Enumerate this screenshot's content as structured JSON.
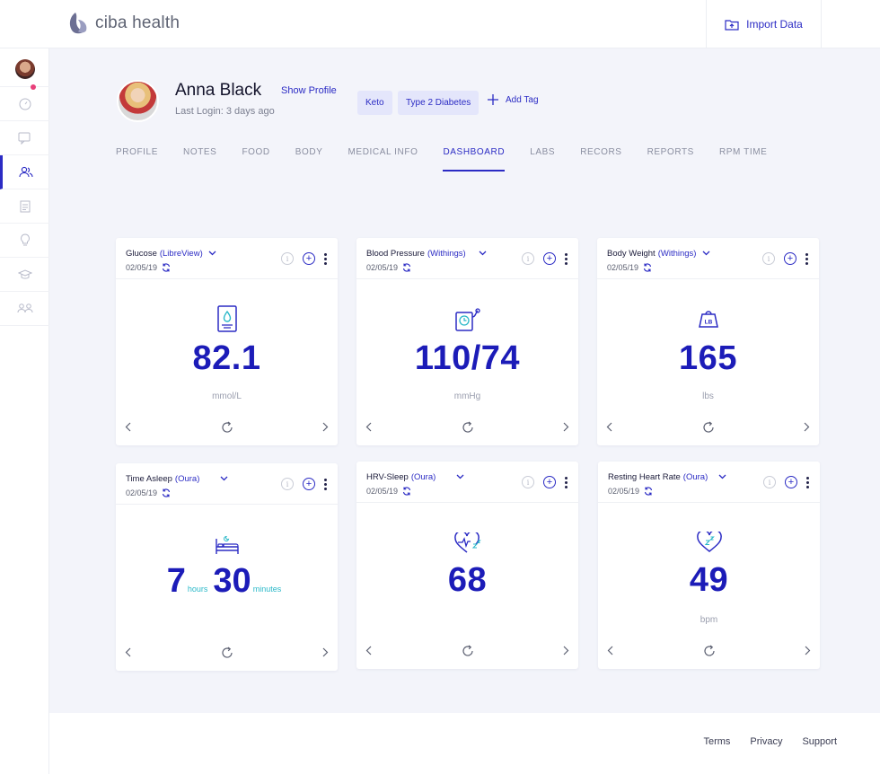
{
  "app": {
    "brand": "ciba health",
    "import_label": "Import Data"
  },
  "patient": {
    "name": "Anna Black",
    "show_profile": "Show Profile",
    "last_login": "Last Login: 3 days ago",
    "tags": [
      "Keto",
      "Type 2 Diabetes"
    ],
    "add_tag": "Add Tag"
  },
  "tabs": [
    "PROFILE",
    "NOTES",
    "FOOD",
    "BODY",
    "MEDICAL INFO",
    "DASHBOARD",
    "LABS",
    "RECORS",
    "REPORTS",
    "RPM TIME"
  ],
  "active_tab": "DASHBOARD",
  "cards": [
    {
      "title": "Glucose",
      "source": "(LibreView)",
      "date": "02/05/19",
      "value": "82.1",
      "unit": "mmol/L",
      "icon": "glucose-meter-icon"
    },
    {
      "title": "Blood Pressure",
      "source": "(Withings)",
      "date": "02/05/19",
      "value": "110/74",
      "unit": "mmHg",
      "icon": "blood-pressure-icon"
    },
    {
      "title": "Body Weight",
      "source": "(Withings)",
      "date": "02/05/19",
      "value": "165",
      "unit": "lbs",
      "icon": "weight-icon",
      "icon_label": "LB"
    },
    {
      "title": "Time Asleep",
      "source": "(Oura)",
      "date": "02/05/19",
      "hours": "7",
      "hours_label": "hours",
      "minutes": "30",
      "minutes_label": "minutes",
      "icon": "bed-icon"
    },
    {
      "title": "HRV-Sleep",
      "source": "(Oura)",
      "date": "02/05/19",
      "value": "68",
      "unit": "",
      "icon": "heart-sleep-icon"
    },
    {
      "title": "Resting Heart Rate",
      "source": "(Oura)",
      "date": "02/05/19",
      "value": "49",
      "unit": "bpm",
      "icon": "heart-zz-icon"
    }
  ],
  "footer": {
    "terms": "Terms",
    "privacy": "Privacy",
    "support": "Support"
  },
  "colors": {
    "accent": "#2b2bc4",
    "value": "#1c1cb8",
    "teal": "#2ab8c8",
    "background": "#f3f4fa",
    "badge": "#e8407a"
  }
}
